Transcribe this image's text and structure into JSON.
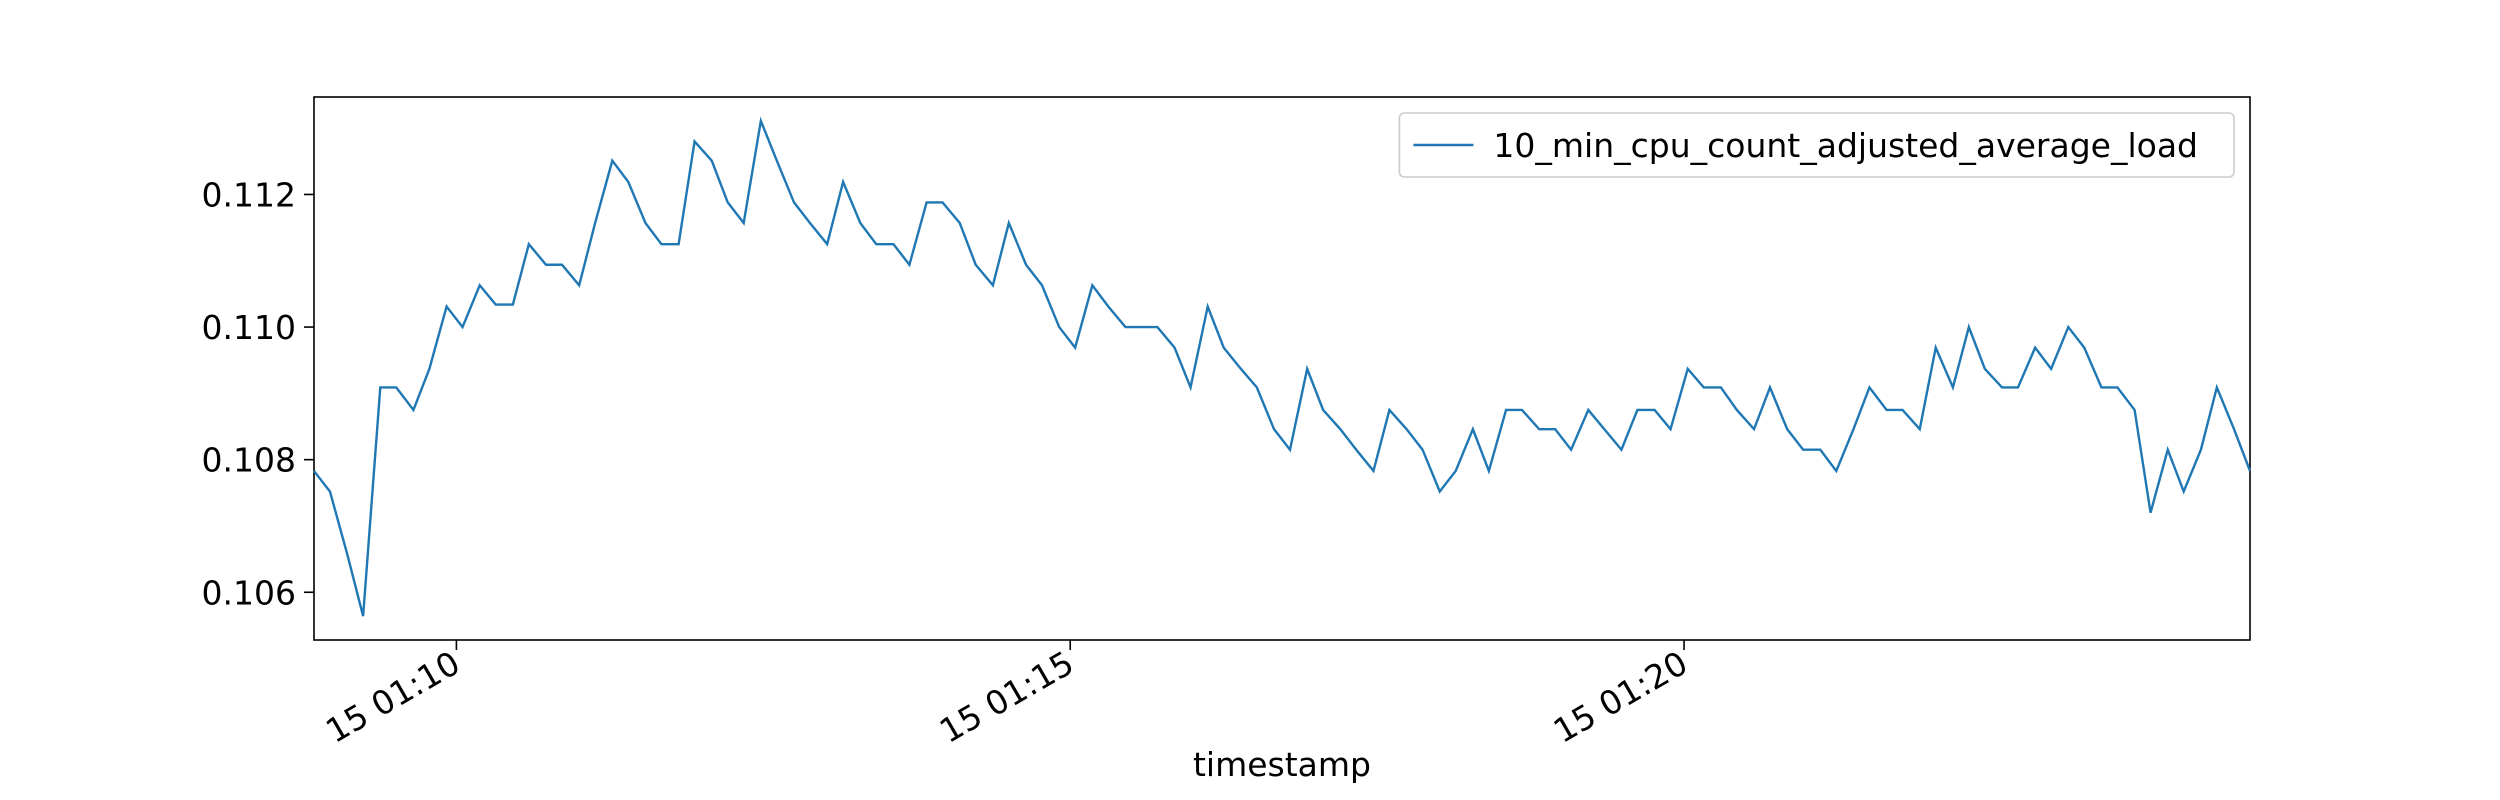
{
  "chart_data": {
    "type": "line",
    "xlabel": "timestamp",
    "x": [
      8.84,
      8.97,
      9.11,
      9.24,
      9.38,
      9.51,
      9.65,
      9.78,
      9.92,
      10.05,
      10.19,
      10.32,
      10.46,
      10.59,
      10.73,
      10.86,
      11.0,
      11.13,
      11.27,
      11.4,
      11.54,
      11.67,
      11.81,
      11.94,
      12.08,
      12.21,
      12.34,
      12.48,
      12.61,
      12.75,
      12.88,
      13.02,
      13.15,
      13.29,
      13.42,
      13.56,
      13.69,
      13.83,
      13.96,
      14.1,
      14.23,
      14.37,
      14.5,
      14.64,
      14.77,
      14.91,
      15.04,
      15.18,
      15.31,
      15.45,
      15.58,
      15.71,
      15.85,
      15.98,
      16.12,
      16.25,
      16.39,
      16.52,
      16.66,
      16.79,
      16.93,
      17.06,
      17.2,
      17.33,
      17.47,
      17.6,
      17.74,
      17.87,
      18.01,
      18.14,
      18.28,
      18.41,
      18.55,
      18.68,
      18.82,
      18.95,
      19.08,
      19.22,
      19.35,
      19.49,
      19.62,
      19.76,
      19.89,
      20.03,
      20.16,
      20.3,
      20.43,
      20.57,
      20.7,
      20.84,
      20.97,
      21.11,
      21.24,
      21.38,
      21.51,
      21.65,
      21.78,
      21.92,
      22.05,
      22.19,
      22.32,
      22.45,
      22.59,
      22.72,
      22.86,
      22.99,
      23.13,
      23.26,
      23.4,
      23.53,
      23.67,
      23.8,
      23.94,
      24.07,
      24.21,
      24.34,
      24.48,
      24.61
    ],
    "series": [
      {
        "name": "10_min_cpu_count_adjusted_average_load",
        "color": "#1f77b4",
        "values": [
          0.10783,
          0.10752,
          0.10658,
          0.10564,
          0.10909,
          0.10909,
          0.10875,
          0.10937,
          0.11031,
          0.11,
          0.11063,
          0.11034,
          0.11034,
          0.11125,
          0.11094,
          0.11094,
          0.11063,
          0.11157,
          0.11251,
          0.11219,
          0.11157,
          0.11125,
          0.11125,
          0.1128,
          0.11251,
          0.11188,
          0.11157,
          0.11311,
          0.11251,
          0.11188,
          0.11157,
          0.11125,
          0.11219,
          0.11157,
          0.11125,
          0.11125,
          0.11094,
          0.11188,
          0.11188,
          0.11157,
          0.11094,
          0.11063,
          0.11157,
          0.11094,
          0.11063,
          0.11,
          0.10969,
          0.11063,
          0.11031,
          0.11,
          0.11,
          0.11,
          0.10969,
          0.10909,
          0.11031,
          0.10969,
          0.10937,
          0.10909,
          0.10846,
          0.10815,
          0.10937,
          0.10875,
          0.10846,
          0.10815,
          0.10783,
          0.10875,
          0.10846,
          0.10815,
          0.10752,
          0.10783,
          0.10846,
          0.10783,
          0.10875,
          0.10875,
          0.10846,
          0.10846,
          0.10815,
          0.10875,
          0.10846,
          0.10815,
          0.10875,
          0.10875,
          0.10846,
          0.10937,
          0.10909,
          0.10909,
          0.10875,
          0.10846,
          0.10909,
          0.10846,
          0.10815,
          0.10815,
          0.10783,
          0.10846,
          0.10909,
          0.10875,
          0.10875,
          0.10846,
          0.10969,
          0.10909,
          0.11,
          0.10937,
          0.10909,
          0.10909,
          0.10969,
          0.10937,
          0.11,
          0.10969,
          0.10909,
          0.10909,
          0.10875,
          0.1072,
          0.10815,
          0.10752,
          0.10815,
          0.10909,
          0.10846,
          0.10783
        ]
      }
    ],
    "xlim": [
      8.84,
      24.61
    ],
    "xticks": [
      {
        "value": 10,
        "label": "15 01:10"
      },
      {
        "value": 15,
        "label": "15 01:15"
      },
      {
        "value": 20,
        "label": "15 01:20"
      }
    ],
    "ylim": [
      0.10528,
      0.11347
    ],
    "yticks": [
      0.106,
      0.108,
      {
        "value": 0.11,
        "label": "0.110"
      },
      0.112
    ],
    "grid": false,
    "legend": "upper right"
  }
}
